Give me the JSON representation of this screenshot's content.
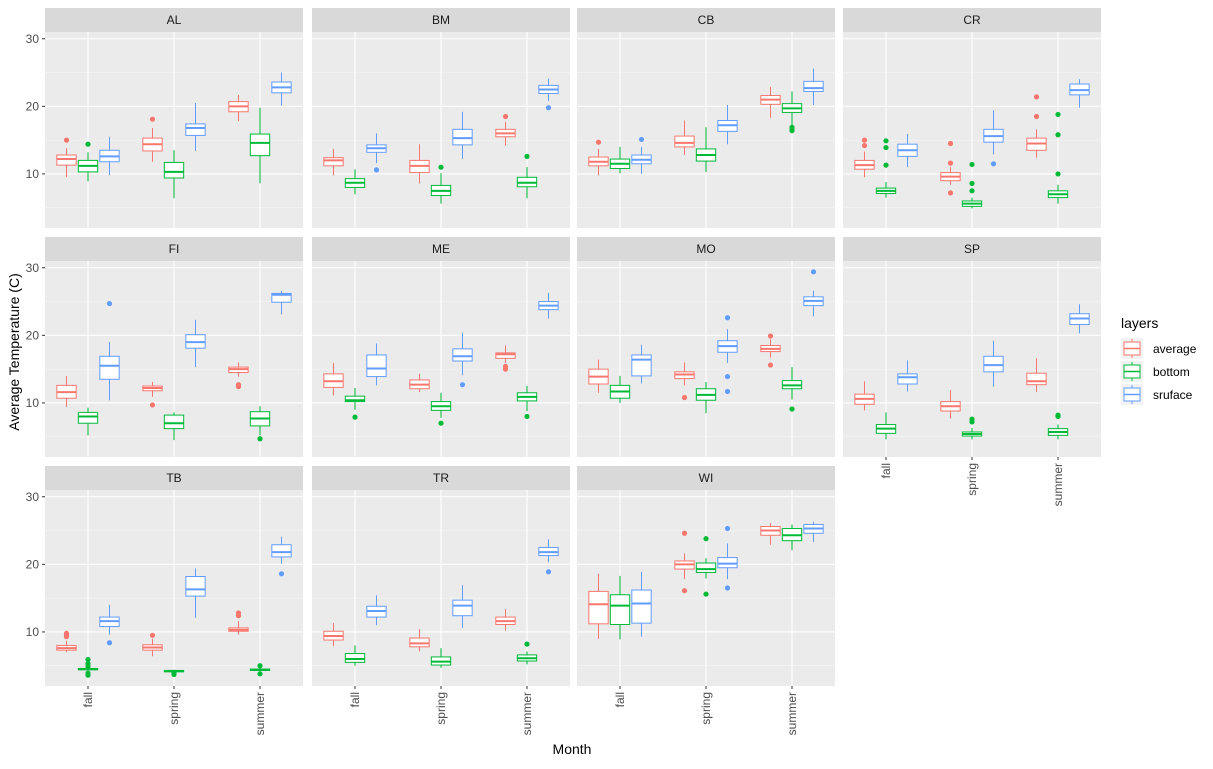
{
  "chart_data": {
    "type": "boxplot-facet",
    "xlabel": "Month",
    "ylabel": "Average Temperature (C)",
    "categories": [
      "fall",
      "spring",
      "summer"
    ],
    "y_ticks": [
      10,
      20,
      30
    ],
    "ylim": [
      2,
      31
    ],
    "grid": true,
    "legend": {
      "title": "layers",
      "position": "right",
      "entries": [
        {
          "name": "average",
          "color": "#F8766D"
        },
        {
          "name": "bottom",
          "color": "#00BA38"
        },
        {
          "name": "sruface",
          "color": "#619CFF"
        }
      ]
    },
    "panels": [
      {
        "name": "AL",
        "boxes": {
          "fall": [
            [
              9.5,
              11.3,
              12.2,
              12.8,
              13.8,
              [
                15
              ]
            ],
            [
              8.9,
              10.3,
              11.2,
              12.0,
              13.2,
              [
                14.4
              ]
            ],
            [
              9.8,
              11.8,
              12.6,
              13.5,
              15.5,
              []
            ]
          ],
          "spring": [
            [
              11.8,
              13.4,
              14.4,
              15.3,
              16.8,
              [
                18.1
              ]
            ],
            [
              6.4,
              9.4,
              10.3,
              11.7,
              13.5,
              []
            ],
            [
              13.4,
              15.7,
              16.8,
              17.4,
              20.5,
              []
            ]
          ],
          "summer": [
            [
              17.8,
              19.2,
              20.0,
              20.7,
              21.7,
              []
            ],
            [
              8.6,
              12.7,
              14.6,
              15.9,
              19.8,
              []
            ],
            [
              20.1,
              22.0,
              22.8,
              23.6,
              25.0,
              []
            ]
          ]
        }
      },
      {
        "name": "BM",
        "boxes": {
          "fall": [
            [
              9.8,
              11.2,
              12.0,
              12.4,
              13.7,
              []
            ],
            [
              7.0,
              8.0,
              8.7,
              9.3,
              10.7,
              []
            ],
            [
              11.6,
              13.2,
              13.8,
              14.3,
              16.0,
              [
                10.6
              ]
            ]
          ],
          "spring": [
            [
              8.6,
              10.2,
              11.2,
              12.0,
              14.4,
              []
            ],
            [
              5.6,
              6.8,
              7.5,
              8.3,
              10.1,
              [
                11.0
              ]
            ],
            [
              12.2,
              14.3,
              15.3,
              16.6,
              19.2,
              []
            ]
          ],
          "summer": [
            [
              14.2,
              15.5,
              16.0,
              16.6,
              17.7,
              [
                18.5
              ]
            ],
            [
              6.4,
              8.1,
              8.7,
              9.5,
              11.0,
              [
                12.6
              ]
            ],
            [
              20.8,
              21.9,
              22.5,
              23.1,
              24.1,
              [
                19.8
              ]
            ]
          ]
        }
      },
      {
        "name": "CB",
        "boxes": {
          "fall": [
            [
              9.8,
              11.2,
              11.8,
              12.5,
              13.7,
              [
                14.7
              ]
            ],
            [
              10.1,
              10.8,
              11.5,
              12.2,
              14.0,
              []
            ],
            [
              10.0,
              11.5,
              12.1,
              12.8,
              14.0,
              [
                15.1
              ]
            ]
          ],
          "spring": [
            [
              12.8,
              14.0,
              14.6,
              15.6,
              17.9,
              []
            ],
            [
              10.3,
              11.9,
              12.8,
              13.7,
              16.9,
              []
            ],
            [
              14.4,
              16.3,
              17.2,
              17.9,
              20.2,
              []
            ]
          ],
          "summer": [
            [
              18.3,
              20.3,
              21.0,
              21.6,
              22.9,
              []
            ],
            [
              17.1,
              19.1,
              19.7,
              20.4,
              22.2,
              [
                16.4,
                16.7,
                16.9
              ]
            ],
            [
              20.2,
              22.2,
              22.7,
              23.7,
              25.6,
              []
            ]
          ]
        }
      },
      {
        "name": "CR",
        "boxes": {
          "fall": [
            [
              9.5,
              10.7,
              11.3,
              12.0,
              13.3,
              [
                14.2,
                15.0
              ]
            ],
            [
              6.5,
              7.1,
              7.5,
              7.9,
              8.8,
              [
                11.3,
                13.9,
                14.9
              ]
            ],
            [
              11.0,
              12.6,
              13.5,
              14.4,
              15.9,
              []
            ]
          ],
          "spring": [
            [
              8.4,
              9.0,
              9.6,
              10.2,
              11.0,
              [
                7.2,
                11.6,
                14.5
              ]
            ],
            [
              4.9,
              5.2,
              5.6,
              6.0,
              6.5,
              [
                7.5,
                8.6,
                11.4
              ]
            ],
            [
              12.9,
              14.7,
              15.6,
              16.6,
              19.4,
              [
                11.5
              ]
            ]
          ],
          "summer": [
            [
              12.4,
              13.5,
              14.5,
              15.3,
              16.6,
              [
                18.5,
                21.4
              ]
            ],
            [
              5.6,
              6.5,
              7.0,
              7.5,
              8.4,
              [
                10.0,
                15.8,
                18.8
              ]
            ],
            [
              19.8,
              21.7,
              22.4,
              23.3,
              24.0,
              []
            ]
          ]
        }
      },
      {
        "name": "FI",
        "boxes": {
          "fall": [
            [
              9.4,
              10.7,
              11.6,
              12.6,
              14.0,
              []
            ],
            [
              5.2,
              7.0,
              8.0,
              8.6,
              9.3,
              []
            ],
            [
              10.4,
              13.5,
              15.5,
              16.9,
              19.0,
              [
                24.7
              ]
            ]
          ],
          "spring": [
            [
              10.9,
              11.8,
              12.2,
              12.5,
              13.1,
              [
                9.7
              ]
            ],
            [
              4.5,
              6.2,
              7.0,
              8.2,
              8.6,
              []
            ],
            [
              15.3,
              18.1,
              19.0,
              20.1,
              22.3,
              []
            ]
          ],
          "summer": [
            [
              13.9,
              14.5,
              15.0,
              15.3,
              16.0,
              [
                12.4,
                12.7
              ]
            ],
            [
              5.2,
              6.6,
              7.7,
              8.7,
              9.5,
              [
                4.7
              ]
            ],
            [
              23.1,
              24.9,
              26.0,
              26.2,
              26.6,
              []
            ]
          ]
        }
      },
      {
        "name": "ME",
        "boxes": {
          "fall": [
            [
              11.1,
              12.3,
              13.2,
              14.3,
              15.9,
              []
            ],
            [
              9.0,
              10.2,
              10.4,
              11.0,
              12.2,
              [
                7.9
              ]
            ],
            [
              12.6,
              13.9,
              15.1,
              17.1,
              18.8,
              []
            ]
          ],
          "spring": [
            [
              11.6,
              12.1,
              12.7,
              13.4,
              14.3,
              []
            ],
            [
              7.8,
              8.9,
              9.5,
              10.2,
              11.5,
              [
                7.0
              ]
            ],
            [
              14.1,
              16.2,
              16.9,
              18.0,
              20.4,
              [
                12.7
              ]
            ]
          ],
          "summer": [
            [
              15.9,
              16.6,
              17.2,
              17.4,
              18.5,
              [
                15.0,
                15.4
              ]
            ],
            [
              8.8,
              10.3,
              10.9,
              11.5,
              12.5,
              [
                8.0
              ]
            ],
            [
              22.5,
              23.8,
              24.4,
              25.0,
              26.3,
              []
            ]
          ]
        }
      },
      {
        "name": "MO",
        "boxes": {
          "fall": [
            [
              11.5,
              12.8,
              13.9,
              15.0,
              16.4,
              []
            ],
            [
              10.0,
              10.7,
              11.7,
              12.6,
              14.0,
              []
            ],
            [
              12.9,
              14.0,
              16.4,
              17.1,
              18.6,
              []
            ]
          ],
          "spring": [
            [
              12.6,
              13.6,
              14.2,
              14.6,
              16.0,
              [
                10.8
              ]
            ],
            [
              8.5,
              10.4,
              11.2,
              12.1,
              13.1,
              []
            ],
            [
              15.9,
              17.5,
              18.4,
              19.2,
              20.9,
              [
                11.7,
                13.9,
                22.6
              ]
            ]
          ],
          "summer": [
            [
              16.7,
              17.6,
              18.0,
              18.5,
              19.4,
              [
                15.6,
                19.9
              ]
            ],
            [
              10.5,
              12.1,
              12.6,
              13.3,
              15.3,
              [
                9.1
              ]
            ],
            [
              22.8,
              24.4,
              25.1,
              25.7,
              26.6,
              [
                29.4
              ]
            ]
          ]
        }
      },
      {
        "name": "SP",
        "boxes": {
          "fall": [
            [
              8.9,
              9.8,
              10.6,
              11.3,
              13.2,
              []
            ],
            [
              4.6,
              5.5,
              6.2,
              6.8,
              8.6,
              []
            ],
            [
              11.7,
              12.8,
              13.8,
              14.3,
              16.3,
              []
            ]
          ],
          "spring": [
            [
              7.7,
              8.8,
              9.5,
              10.2,
              11.9,
              []
            ],
            [
              4.6,
              5.1,
              5.4,
              5.7,
              6.3,
              [
                7.2,
                7.6
              ]
            ],
            [
              12.4,
              14.6,
              15.6,
              16.9,
              19.2,
              []
            ]
          ],
          "summer": [
            [
              11.6,
              12.7,
              13.2,
              14.4,
              16.6,
              []
            ],
            [
              4.6,
              5.2,
              5.7,
              6.2,
              6.8,
              [
                8.0,
                8.2
              ]
            ],
            [
              20.3,
              21.6,
              22.5,
              23.2,
              24.6,
              []
            ]
          ]
        }
      },
      {
        "name": "TB",
        "boxes": {
          "fall": [
            [
              7.0,
              7.3,
              7.6,
              8.0,
              8.7,
              [
                9.3,
                9.6,
                9.8
              ]
            ],
            [
              4.3,
              4.4,
              4.5,
              4.6,
              4.7,
              [
                3.6,
                3.9,
                4.9,
                5.3,
                5.9
              ]
            ],
            [
              9.6,
              10.8,
              11.6,
              12.2,
              14.0,
              [
                8.4
              ]
            ]
          ],
          "spring": [
            [
              6.4,
              7.3,
              7.7,
              8.1,
              9.0,
              [
                9.5
              ]
            ],
            [
              3.9,
              4.1,
              4.2,
              4.3,
              4.4,
              [
                3.7,
                4.0
              ]
            ],
            [
              12.1,
              15.3,
              16.3,
              18.2,
              19.4,
              []
            ]
          ],
          "summer": [
            [
              9.6,
              10.1,
              10.3,
              10.6,
              11.6,
              [
                12.4,
                12.8
              ]
            ],
            [
              4.1,
              4.3,
              4.4,
              4.5,
              4.7,
              [
                3.8,
                5.0
              ]
            ],
            [
              20.1,
              21.1,
              21.8,
              22.9,
              24.1,
              [
                18.6
              ]
            ]
          ]
        }
      },
      {
        "name": "TR",
        "boxes": {
          "fall": [
            [
              7.9,
              8.8,
              9.4,
              10.1,
              11.3,
              []
            ],
            [
              5.0,
              5.5,
              6.0,
              6.8,
              8.0,
              []
            ],
            [
              11.0,
              12.2,
              13.1,
              13.8,
              15.4,
              []
            ]
          ],
          "spring": [
            [
              7.1,
              7.8,
              8.3,
              9.1,
              10.4,
              []
            ],
            [
              4.7,
              5.1,
              5.6,
              6.3,
              7.6,
              []
            ],
            [
              10.6,
              12.4,
              13.9,
              14.7,
              16.9,
              []
            ]
          ],
          "summer": [
            [
              10.2,
              11.1,
              11.6,
              12.2,
              13.4,
              []
            ],
            [
              5.2,
              5.7,
              6.1,
              6.6,
              7.1,
              [
                8.2
              ]
            ],
            [
              20.3,
              21.3,
              21.8,
              22.5,
              23.7,
              [
                18.9
              ]
            ]
          ]
        }
      },
      {
        "name": "WI",
        "boxes": {
          "fall": [
            [
              9.0,
              11.2,
              14.1,
              16.0,
              18.6,
              []
            ],
            [
              8.9,
              11.1,
              13.9,
              15.5,
              18.3,
              []
            ],
            [
              9.3,
              11.3,
              14.2,
              16.2,
              18.9,
              []
            ]
          ],
          "spring": [
            [
              17.8,
              19.3,
              20.0,
              20.5,
              21.6,
              [
                16.1,
                24.6
              ]
            ],
            [
              17.9,
              18.8,
              19.3,
              20.2,
              20.9,
              [
                15.6,
                23.8
              ]
            ],
            [
              17.8,
              19.5,
              20.1,
              21.0,
              23.1,
              [
                16.5,
                25.3
              ]
            ]
          ],
          "summer": [
            [
              22.9,
              24.3,
              25.0,
              25.6,
              26.1,
              []
            ],
            [
              22.1,
              23.5,
              24.3,
              25.3,
              25.9,
              []
            ],
            [
              23.3,
              24.6,
              25.3,
              25.9,
              26.3,
              []
            ]
          ]
        }
      }
    ]
  }
}
